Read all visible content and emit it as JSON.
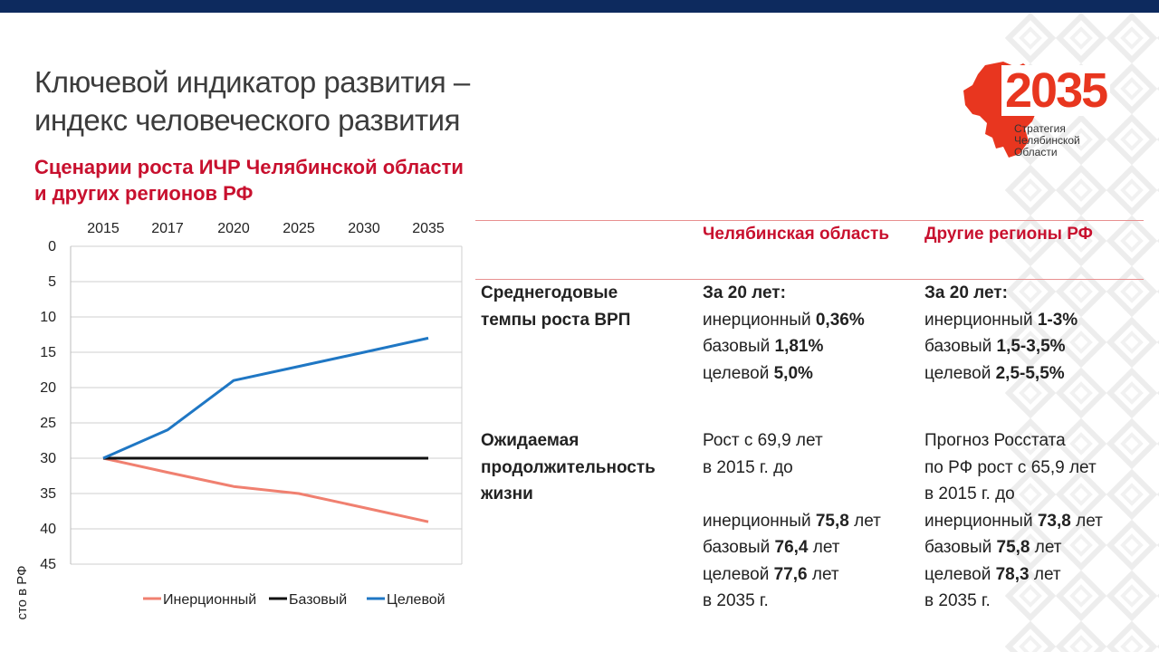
{
  "title_lines": [
    "Ключевой индикатор развития –",
    "индекс человеческого развития"
  ],
  "subtitle_lines": [
    "Сценарии роста ИЧР Челябинской области",
    "и других регионов РФ"
  ],
  "logo": {
    "number": "2035",
    "lines": [
      "Стратегия",
      "Челябинской",
      "Области"
    ]
  },
  "colors": {
    "accent": "#c8102e",
    "topbar": "#0d2a5e",
    "inertial": "#f08070",
    "base": "#111111",
    "target": "#1f77c4"
  },
  "chart_data": {
    "type": "line",
    "x": [
      "2015",
      "2017",
      "2020",
      "2025",
      "2030",
      "2035"
    ],
    "ylabel": "Место в РФ",
    "ylim": [
      0,
      45
    ],
    "yticks": [
      0,
      5,
      10,
      15,
      20,
      25,
      30,
      35,
      40,
      45
    ],
    "y_inverted": true,
    "grid": true,
    "legend_position": "bottom",
    "series": [
      {
        "name": "Инерционный",
        "color": "#f08070",
        "values": [
          30,
          32,
          34,
          35,
          37,
          39
        ]
      },
      {
        "name": "Базовый",
        "color": "#111111",
        "values": [
          30,
          30,
          30,
          30,
          30,
          30
        ]
      },
      {
        "name": "Целевой",
        "color": "#1f77c4",
        "values": [
          30,
          26,
          19,
          17,
          15,
          13
        ]
      }
    ]
  },
  "table": {
    "headers": [
      "Челябинская область",
      "Другие регионы РФ"
    ],
    "rows": [
      {
        "label": [
          "Среднегодовые",
          "темпы роста ВРП"
        ],
        "cols": [
          [
            [
              {
                "t": "За 20 лет:",
                "b": true
              }
            ],
            [
              {
                "t": "инерционный "
              },
              {
                "t": "0,36%",
                "b": true
              }
            ],
            [
              {
                "t": "базовый "
              },
              {
                "t": "1,81%",
                "b": true
              }
            ],
            [
              {
                "t": "целевой "
              },
              {
                "t": "5,0%",
                "b": true
              }
            ]
          ],
          [
            [
              {
                "t": "За 20 лет:",
                "b": true
              }
            ],
            [
              {
                "t": "инерционный "
              },
              {
                "t": "1-3%",
                "b": true
              }
            ],
            [
              {
                "t": "базовый "
              },
              {
                "t": "1,5-3,5%",
                "b": true
              }
            ],
            [
              {
                "t": "целевой "
              },
              {
                "t": "2,5-5,5%",
                "b": true
              }
            ]
          ]
        ]
      },
      {
        "label": [
          "Ожидаемая",
          "продолжительность",
          "жизни"
        ],
        "cols": [
          [
            [
              {
                "t": "Рост с 69,9 лет"
              }
            ],
            [
              {
                "t": "в 2015 г. до"
              }
            ],
            [
              {
                "t": " "
              }
            ],
            [
              {
                "t": "инерционный "
              },
              {
                "t": "75,8",
                "b": true
              },
              {
                "t": " лет"
              }
            ],
            [
              {
                "t": "базовый "
              },
              {
                "t": "76,4",
                "b": true
              },
              {
                "t": " лет"
              }
            ],
            [
              {
                "t": "целевой "
              },
              {
                "t": "77,6",
                "b": true
              },
              {
                "t": " лет"
              }
            ],
            [
              {
                "t": "в 2035 г."
              }
            ]
          ],
          [
            [
              {
                "t": "Прогноз Росстата"
              }
            ],
            [
              {
                "t": "по РФ рост с 65,9 лет"
              }
            ],
            [
              {
                "t": "в 2015 г. до"
              }
            ],
            [
              {
                "t": "инерционный "
              },
              {
                "t": "73,8",
                "b": true
              },
              {
                "t": " лет"
              }
            ],
            [
              {
                "t": "базовый "
              },
              {
                "t": "75,8",
                "b": true
              },
              {
                "t": " лет"
              }
            ],
            [
              {
                "t": "целевой "
              },
              {
                "t": "78,3",
                "b": true
              },
              {
                "t": " лет"
              }
            ],
            [
              {
                "t": "в 2035 г."
              }
            ]
          ]
        ]
      }
    ]
  }
}
